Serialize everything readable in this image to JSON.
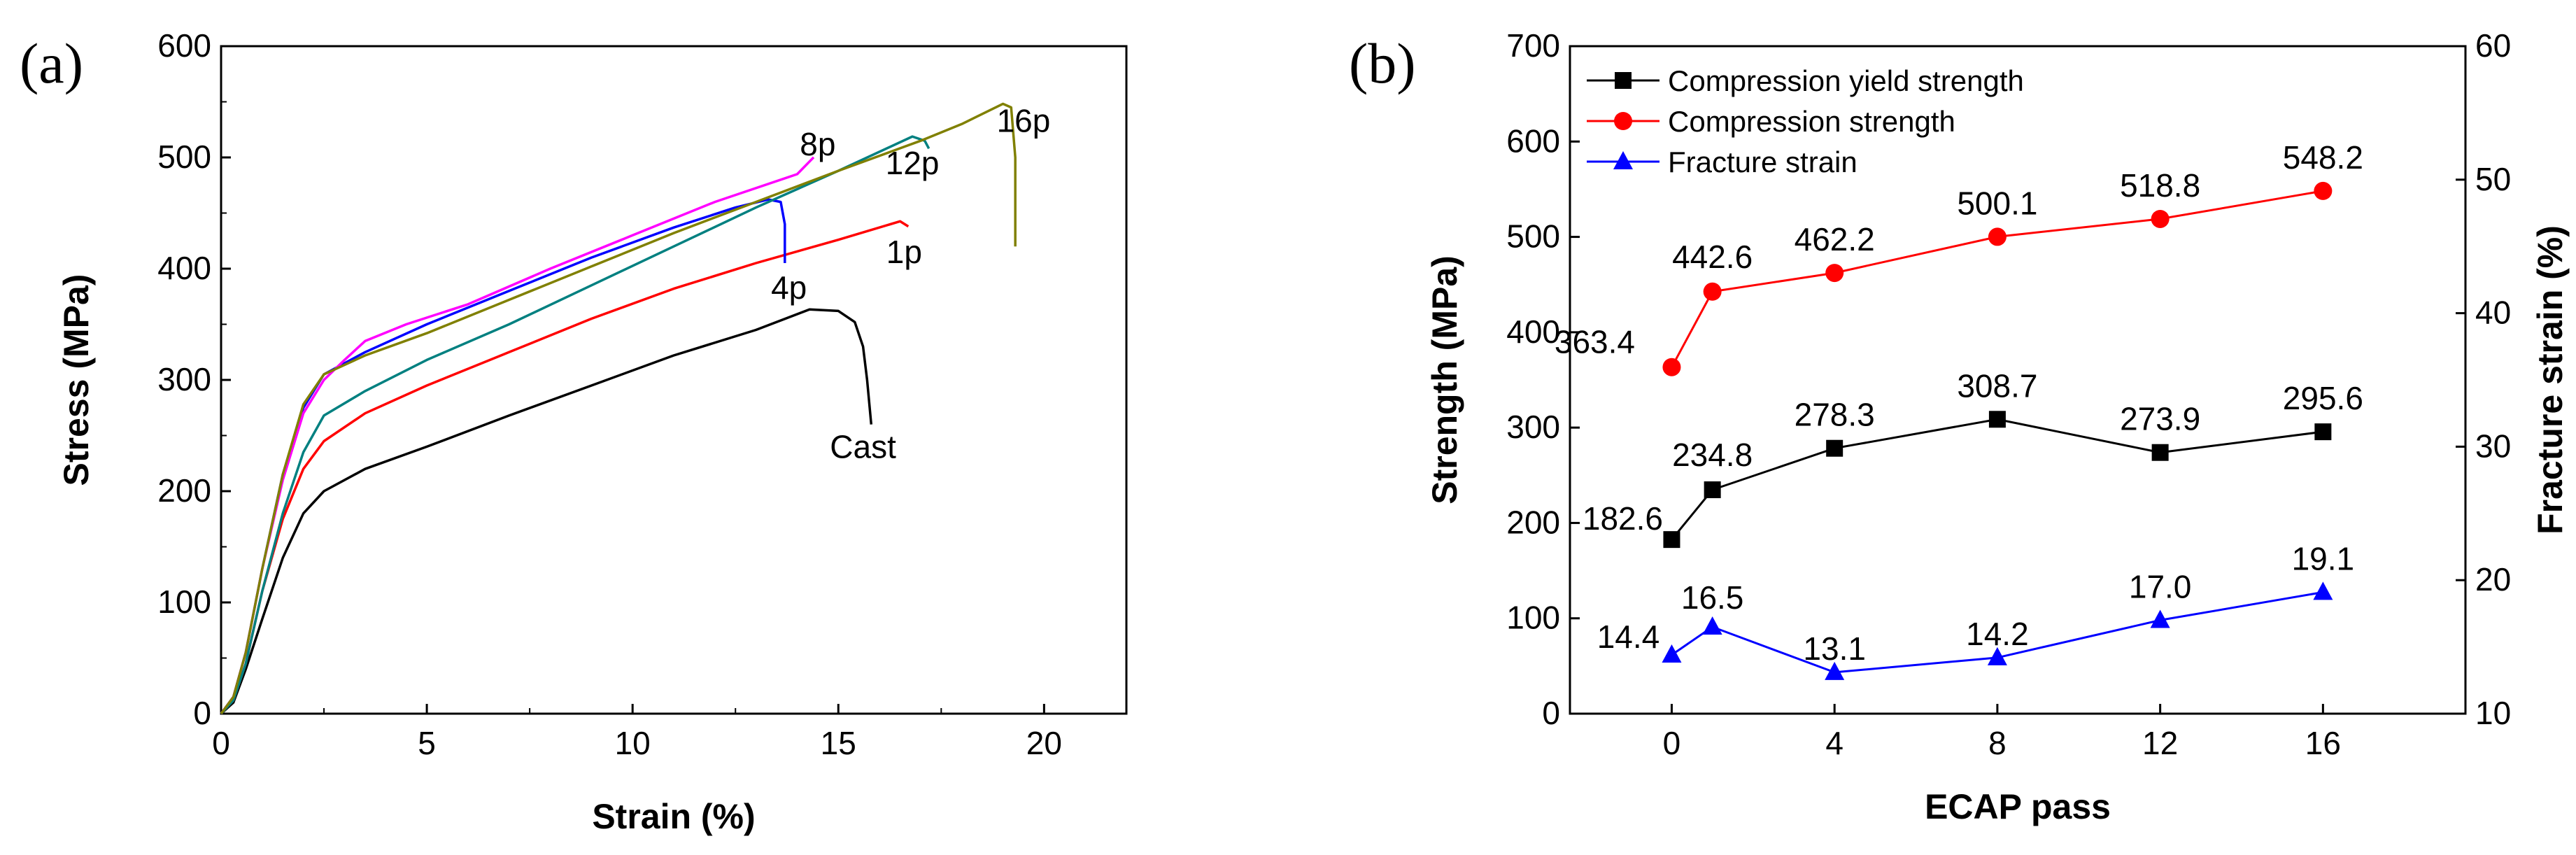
{
  "chart_data": [
    {
      "type": "line",
      "panel_label": "(a)",
      "title": "",
      "xlabel": "Strain (%)",
      "ylabel": "Stress (MPa)",
      "xlim": [
        0,
        22
      ],
      "ylim": [
        0,
        600
      ],
      "xticks": [
        0,
        5,
        10,
        15,
        20
      ],
      "yticks": [
        0,
        100,
        200,
        300,
        400,
        500,
        600
      ],
      "grid": false,
      "series": [
        {
          "name": "Cast",
          "color": "#000000",
          "label_at": [
            15.6,
            240
          ],
          "points": [
            [
              0,
              0
            ],
            [
              0.3,
              10
            ],
            [
              0.6,
              40
            ],
            [
              1.0,
              85
            ],
            [
              1.5,
              140
            ],
            [
              2.0,
              180
            ],
            [
              2.5,
              200
            ],
            [
              3.5,
              220
            ],
            [
              5,
              240
            ],
            [
              7,
              268
            ],
            [
              9,
              295
            ],
            [
              11,
              322
            ],
            [
              13,
              345
            ],
            [
              14.3,
              363.4
            ],
            [
              15,
              362
            ],
            [
              15.4,
              352
            ],
            [
              15.6,
              330
            ],
            [
              15.7,
              300
            ],
            [
              15.8,
              260
            ]
          ]
        },
        {
          "name": "1p",
          "color": "#ff0000",
          "label_at": [
            16.6,
            415
          ],
          "points": [
            [
              0,
              0
            ],
            [
              0.3,
              12
            ],
            [
              0.6,
              45
            ],
            [
              1.0,
              110
            ],
            [
              1.5,
              175
            ],
            [
              2.0,
              220
            ],
            [
              2.5,
              245
            ],
            [
              3.5,
              270
            ],
            [
              5,
              295
            ],
            [
              7,
              325
            ],
            [
              9,
              355
            ],
            [
              11,
              382
            ],
            [
              13,
              405
            ],
            [
              15,
              426
            ],
            [
              16.5,
              442.6
            ],
            [
              16.7,
              438
            ]
          ]
        },
        {
          "name": "4p",
          "color": "#0000ff",
          "label_at": [
            13.8,
            383
          ],
          "points": [
            [
              0,
              0
            ],
            [
              0.3,
              15
            ],
            [
              0.6,
              55
            ],
            [
              1.0,
              130
            ],
            [
              1.5,
              215
            ],
            [
              2.0,
              275
            ],
            [
              2.5,
              305
            ],
            [
              3.5,
              325
            ],
            [
              5,
              350
            ],
            [
              7,
              380
            ],
            [
              9,
              410
            ],
            [
              11,
              437
            ],
            [
              12.5,
              455
            ],
            [
              13.3,
              462.2
            ],
            [
              13.6,
              460
            ],
            [
              13.7,
              440
            ],
            [
              13.7,
              405
            ]
          ]
        },
        {
          "name": "8p",
          "color": "#ff00ff",
          "label_at": [
            14.5,
            512
          ],
          "points": [
            [
              0,
              0
            ],
            [
              0.3,
              15
            ],
            [
              0.6,
              55
            ],
            [
              1.0,
              130
            ],
            [
              1.5,
              210
            ],
            [
              2.0,
              270
            ],
            [
              2.5,
              300
            ],
            [
              3,
              318
            ],
            [
              3.5,
              335
            ],
            [
              4.5,
              350
            ],
            [
              6,
              368
            ],
            [
              8,
              400
            ],
            [
              10,
              430
            ],
            [
              12,
              460
            ],
            [
              14,
              485
            ],
            [
              14.4,
              500.1
            ]
          ]
        },
        {
          "name": "12p",
          "color": "#008080",
          "label_at": [
            16.8,
            495
          ],
          "points": [
            [
              0,
              0
            ],
            [
              0.3,
              12
            ],
            [
              0.6,
              45
            ],
            [
              1.0,
              110
            ],
            [
              1.5,
              180
            ],
            [
              2.0,
              235
            ],
            [
              2.5,
              268
            ],
            [
              3.5,
              290
            ],
            [
              5,
              318
            ],
            [
              7,
              350
            ],
            [
              9,
              385
            ],
            [
              11,
              420
            ],
            [
              13,
              455
            ],
            [
              15,
              488
            ],
            [
              16.8,
              518.8
            ],
            [
              17.1,
              515
            ],
            [
              17.2,
              508
            ]
          ]
        },
        {
          "name": "16p",
          "color": "#808000",
          "label_at": [
            19.5,
            533
          ],
          "points": [
            [
              0,
              0
            ],
            [
              0.3,
              15
            ],
            [
              0.6,
              55
            ],
            [
              1.0,
              130
            ],
            [
              1.5,
              215
            ],
            [
              2.0,
              278
            ],
            [
              2.5,
              305
            ],
            [
              3.5,
              322
            ],
            [
              5,
              342
            ],
            [
              7,
              372
            ],
            [
              9,
              402
            ],
            [
              11,
              432
            ],
            [
              13,
              460
            ],
            [
              15,
              488
            ],
            [
              17,
              515
            ],
            [
              18,
              530
            ],
            [
              19,
              548.2
            ],
            [
              19.2,
              545
            ],
            [
              19.3,
              500
            ],
            [
              19.3,
              420
            ]
          ]
        }
      ]
    },
    {
      "type": "line",
      "panel_label": "(b)",
      "title": "",
      "xlabel": "ECAP pass",
      "ylabel": "Strength (MPa)",
      "y2label": "Fracture strain (%)",
      "categories": [
        "0",
        "4",
        "8",
        "12",
        "16"
      ],
      "xlim": [
        -2.5,
        19.5
      ],
      "ylim": [
        0,
        700
      ],
      "y2lim": [
        10,
        60
      ],
      "xticks": [
        0,
        4,
        8,
        12,
        16
      ],
      "yticks": [
        0,
        100,
        200,
        300,
        400,
        500,
        600,
        700
      ],
      "y2ticks": [
        10,
        20,
        30,
        40,
        50,
        60
      ],
      "grid": false,
      "legend_position": "top-left",
      "series": [
        {
          "name": "Compression yield strength",
          "color": "#000000",
          "marker": "square",
          "axis": "left",
          "x": [
            0,
            1,
            4,
            8,
            12,
            16
          ],
          "values": [
            182.6,
            234.8,
            278.3,
            308.7,
            273.9,
            295.6
          ],
          "labels": [
            "182.6",
            "234.8",
            "278.3",
            "308.7",
            "273.9",
            "295.6"
          ]
        },
        {
          "name": "Compression strength",
          "color": "#ff0000",
          "marker": "circle",
          "axis": "left",
          "x": [
            0,
            1,
            4,
            8,
            12,
            16
          ],
          "values": [
            363.4,
            442.6,
            462.2,
            500.1,
            518.8,
            548.2
          ],
          "labels": [
            "363.4",
            "442.6",
            "462.2",
            "500.1",
            "518.8",
            "548.2"
          ]
        },
        {
          "name": "Fracture strain",
          "color": "#0000ff",
          "marker": "triangle",
          "axis": "right",
          "x": [
            0,
            1,
            4,
            8,
            12,
            16
          ],
          "values": [
            14.4,
            16.5,
            13.1,
            14.2,
            17.0,
            19.1
          ],
          "labels": [
            "14.4",
            "16.5",
            "13.1",
            "14.2",
            "17.0",
            "19.1"
          ]
        }
      ]
    }
  ]
}
